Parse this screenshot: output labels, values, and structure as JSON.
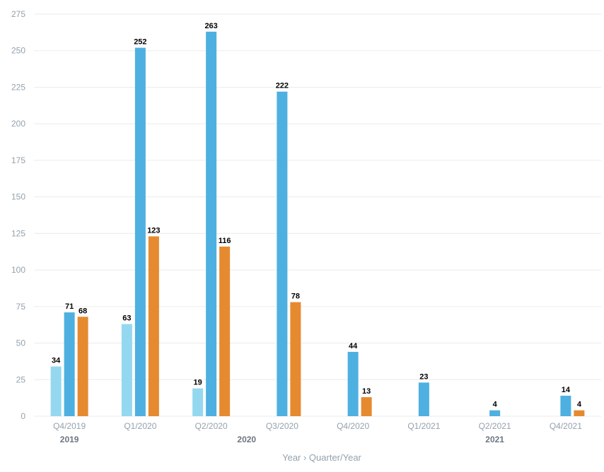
{
  "chart_data": {
    "type": "bar",
    "categories": [
      "Q4/2019",
      "Q1/2020",
      "Q2/2020",
      "Q3/2020",
      "Q4/2020",
      "Q1/2021",
      "Q2/2021",
      "Q4/2021"
    ],
    "category_groups": [
      {
        "label": "2019",
        "categories": [
          "Q4/2019"
        ]
      },
      {
        "label": "2020",
        "categories": [
          "Q1/2020",
          "Q2/2020",
          "Q3/2020",
          "Q4/2020"
        ]
      },
      {
        "label": "2021",
        "categories": [
          "Q1/2021",
          "Q2/2021",
          "Q4/2021"
        ]
      }
    ],
    "series": [
      {
        "color": "#94d8f0",
        "values": [
          34,
          63,
          19,
          null,
          null,
          null,
          null,
          null
        ]
      },
      {
        "color": "#4eb0e0",
        "values": [
          71,
          252,
          263,
          222,
          44,
          23,
          4,
          14
        ]
      },
      {
        "color": "#e68a30",
        "values": [
          68,
          123,
          116,
          78,
          13,
          null,
          null,
          4
        ]
      }
    ],
    "xlabel": "Year › Quarter/Year",
    "ylim": [
      0,
      275
    ],
    "yticks": [
      0,
      25,
      50,
      75,
      100,
      125,
      150,
      175,
      200,
      225,
      250,
      275
    ],
    "grid": true,
    "legend": "none"
  }
}
